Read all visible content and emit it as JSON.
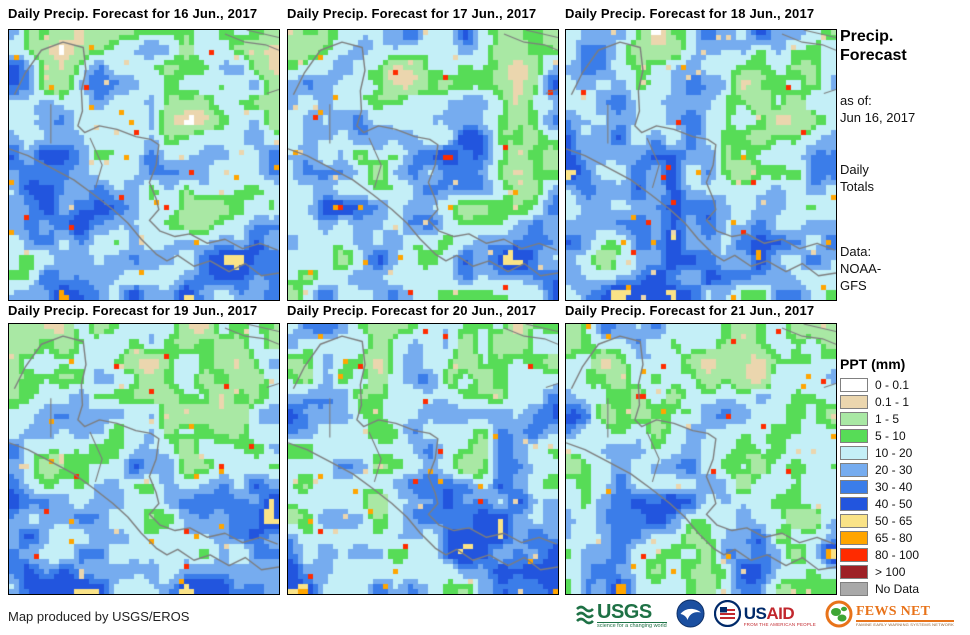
{
  "panels": [
    {
      "title": "Daily Precip. Forecast for 16 Jun., 2017"
    },
    {
      "title": "Daily Precip. Forecast for 17 Jun., 2017"
    },
    {
      "title": "Daily Precip. Forecast for 18 Jun., 2017"
    },
    {
      "title": "Daily Precip. Forecast for 19 Jun., 2017"
    },
    {
      "title": "Daily Precip. Forecast for 20 Jun., 2017"
    },
    {
      "title": "Daily Precip. Forecast for 21 Jun., 2017"
    }
  ],
  "sidebar": {
    "title_line1": "Precip.",
    "title_line2": "Forecast",
    "asof_label": "as of:",
    "asof_date": "Jun 16, 2017",
    "totals_line1": "Daily",
    "totals_line2": "Totals",
    "data_label": "Data:",
    "data_source_line1": "NOAA-",
    "data_source_line2": "GFS"
  },
  "legend": {
    "title": "PPT (mm)",
    "items": [
      {
        "label": "0 - 0.1",
        "color": "#FFFFFF"
      },
      {
        "label": "0.1 - 1",
        "color": "#EBD6AE"
      },
      {
        "label": "1 - 5",
        "color": "#A9E8A4"
      },
      {
        "label": "5 - 10",
        "color": "#57DC57"
      },
      {
        "label": "10 - 20",
        "color": "#C4EFF7"
      },
      {
        "label": "20 - 30",
        "color": "#76ACEF"
      },
      {
        "label": "30 - 40",
        "color": "#3B7DE9"
      },
      {
        "label": "40 - 50",
        "color": "#2255DE"
      },
      {
        "label": "50 - 65",
        "color": "#FAE387"
      },
      {
        "label": "65 - 80",
        "color": "#FFA500"
      },
      {
        "label": "80 - 100",
        "color": "#FF2B00"
      },
      {
        "label": "> 100",
        "color": "#9E2126"
      },
      {
        "label": "No Data",
        "color": "#A9A9A9"
      }
    ]
  },
  "footer": {
    "credit": "Map produced by USGS/EROS",
    "logos": {
      "usgs": {
        "name": "USGS",
        "tagline": "science for a changing world"
      },
      "usaid": {
        "name_part1": "US",
        "name_part2": "AID",
        "tagline": "FROM THE AMERICAN PEOPLE"
      },
      "fewsnet": {
        "name": "FEWS NET",
        "tagline": "FAMINE EARLY WARNING SYSTEMS NETWORK"
      }
    }
  },
  "map_style": {
    "coastline_color": "#7d7d7d",
    "panel_border_color": "#000000"
  }
}
